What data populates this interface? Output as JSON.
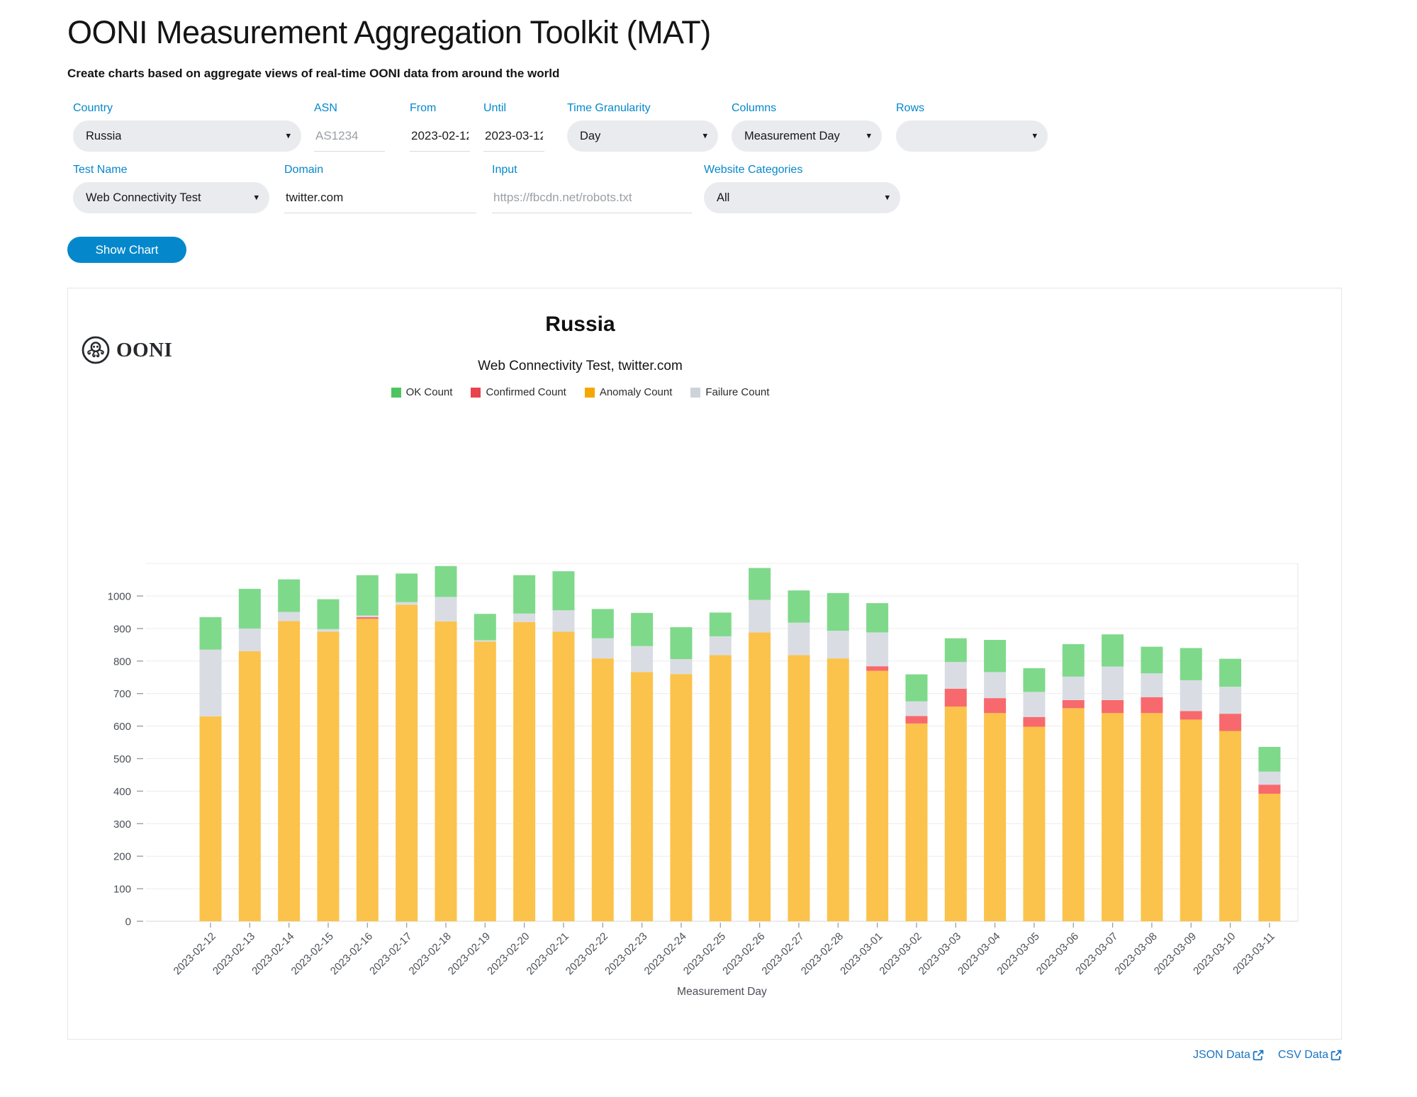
{
  "header": {
    "title": "OONI Measurement Aggregation Toolkit (MAT)",
    "subtitle": "Create charts based on aggregate views of real-time OONI data from around the world"
  },
  "filters": {
    "country": {
      "label": "Country",
      "value": "Russia"
    },
    "asn": {
      "label": "ASN",
      "placeholder": "AS1234"
    },
    "from": {
      "label": "From",
      "value": "2023-02-12"
    },
    "until": {
      "label": "Until",
      "value": "2023-03-12"
    },
    "time_granularity": {
      "label": "Time Granularity",
      "value": "Day"
    },
    "columns": {
      "label": "Columns",
      "value": "Measurement Day"
    },
    "rows": {
      "label": "Rows",
      "value": ""
    },
    "test_name": {
      "label": "Test Name",
      "value": "Web Connectivity Test"
    },
    "domain": {
      "label": "Domain",
      "value": "twitter.com"
    },
    "input": {
      "label": "Input",
      "placeholder": "https://fbcdn.net/robots.txt"
    },
    "website_categories": {
      "label": "Website Categories",
      "value": "All"
    }
  },
  "actions": {
    "show_chart": "Show Chart"
  },
  "brand": {
    "logo_text": "OONI"
  },
  "chart_data": {
    "type": "bar",
    "stacked": true,
    "title": "Russia",
    "subtitle": "Web Connectivity Test, twitter.com",
    "xlabel": "Measurement Day",
    "ylabel": "",
    "ylim": [
      0,
      1100
    ],
    "yticks": [
      0,
      100,
      200,
      300,
      400,
      500,
      600,
      700,
      800,
      900,
      1000
    ],
    "grid": true,
    "legend_position": "top",
    "stack_order": [
      "Anomaly Count",
      "Confirmed Count",
      "Failure Count",
      "OK Count"
    ],
    "categories": [
      "2023-02-12",
      "2023-02-13",
      "2023-02-14",
      "2023-02-15",
      "2023-02-16",
      "2023-02-17",
      "2023-02-18",
      "2023-02-19",
      "2023-02-20",
      "2023-02-21",
      "2023-02-22",
      "2023-02-23",
      "2023-02-24",
      "2023-02-25",
      "2023-02-26",
      "2023-02-27",
      "2023-02-28",
      "2023-03-01",
      "2023-03-02",
      "2023-03-03",
      "2023-03-04",
      "2023-03-05",
      "2023-03-06",
      "2023-03-07",
      "2023-03-08",
      "2023-03-09",
      "2023-03-10",
      "2023-03-11"
    ],
    "series": [
      {
        "name": "OK Count",
        "legend_color": "#4EC45F",
        "color": "#7FD98A",
        "values": [
          100,
          122,
          100,
          92,
          124,
          88,
          95,
          81,
          118,
          120,
          90,
          102,
          98,
          73,
          98,
          99,
          116,
          90,
          83,
          73,
          99,
          73,
          100,
          99,
          82,
          99,
          86,
          76
        ]
      },
      {
        "name": "Confirmed Count",
        "legend_color": "#E8434E",
        "color": "#F7696D",
        "values": [
          0,
          0,
          0,
          0,
          5,
          0,
          0,
          0,
          0,
          0,
          0,
          0,
          0,
          0,
          0,
          0,
          0,
          14,
          23,
          55,
          46,
          30,
          25,
          40,
          49,
          26,
          53,
          28
        ]
      },
      {
        "name": "Anomaly Count",
        "legend_color": "#F5A700",
        "color": "#FBC34B",
        "values": [
          630,
          830,
          923,
          890,
          930,
          973,
          922,
          860,
          920,
          890,
          808,
          766,
          760,
          818,
          888,
          818,
          808,
          770,
          608,
          660,
          640,
          598,
          655,
          640,
          640,
          620,
          585,
          392
        ]
      },
      {
        "name": "Failure Count",
        "legend_color": "#CDD3DB",
        "color": "#D9DDE3",
        "values": [
          205,
          70,
          28,
          8,
          5,
          8,
          75,
          4,
          26,
          66,
          62,
          80,
          46,
          58,
          100,
          100,
          85,
          104,
          45,
          82,
          80,
          77,
          72,
          103,
          73,
          95,
          83,
          40
        ]
      }
    ]
  },
  "links": {
    "json": "JSON Data",
    "csv": "CSV Data"
  }
}
